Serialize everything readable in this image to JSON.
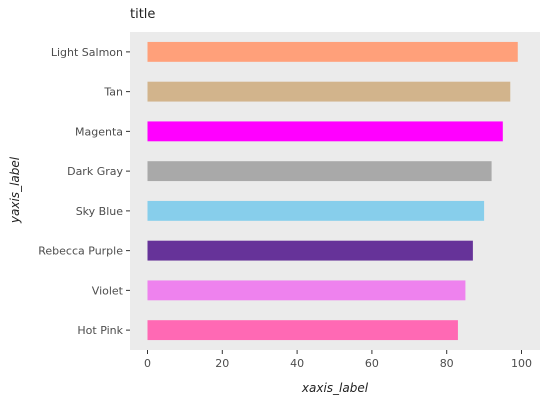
{
  "chart_data": {
    "type": "bar",
    "orientation": "horizontal",
    "title": "title",
    "xlabel": "xaxis_label",
    "ylabel": "yaxis_label",
    "xlim": [
      0,
      100
    ],
    "x_ticks": [
      0,
      20,
      40,
      60,
      80,
      100
    ],
    "grid": false,
    "categories": [
      "Hot Pink",
      "Violet",
      "Rebecca Purple",
      "Sky Blue",
      "Dark Gray",
      "Magenta",
      "Tan",
      "Light Salmon"
    ],
    "values": [
      83,
      85,
      87,
      90,
      92,
      95,
      97,
      99
    ],
    "colors": [
      "#ff69b4",
      "#ee82ee",
      "#663399",
      "#87ceeb",
      "#a9a9a9",
      "#ff00ff",
      "#d2b48c",
      "#ffa07a"
    ]
  }
}
